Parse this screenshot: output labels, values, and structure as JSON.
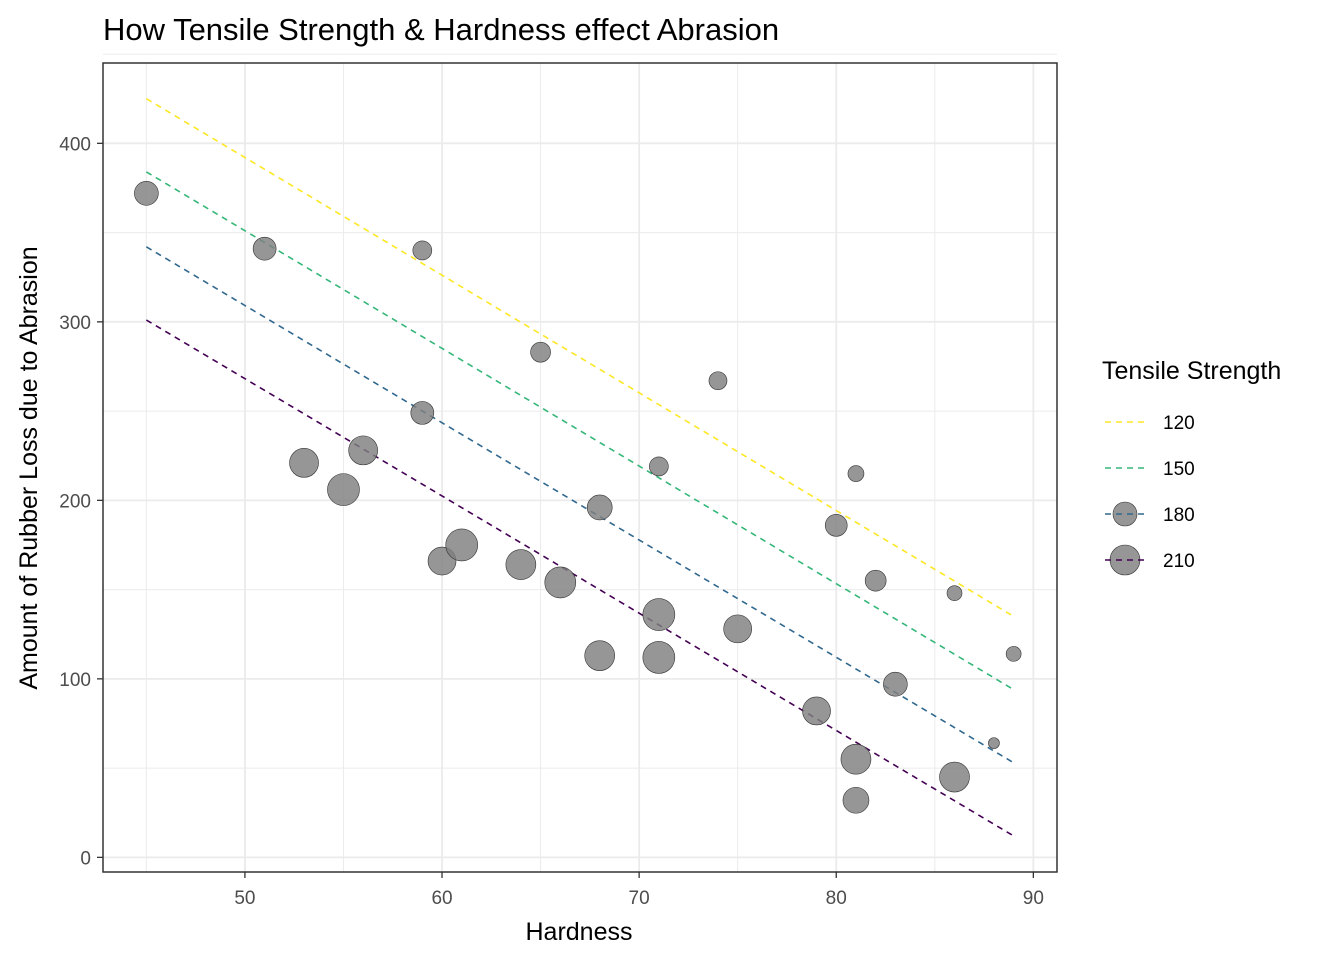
{
  "chart_data": {
    "type": "scatter",
    "title": "How Tensile Strength & Hardness effect Abrasion",
    "xlabel": "Hardness",
    "ylabel": "Amount of Rubber Loss due to Abrasion",
    "xlim": [
      42.8,
      91.2
    ],
    "ylim": [
      -8.2,
      445
    ],
    "x_ticks": [
      50,
      60,
      70,
      80,
      90
    ],
    "y_ticks": [
      0,
      100,
      200,
      300,
      400
    ],
    "grid": true,
    "legend": {
      "title": "Tensile Strength",
      "placement": "right",
      "entries": [
        {
          "label": "120",
          "value": 120,
          "color": "#FDE725",
          "marker": false
        },
        {
          "label": "150",
          "value": 150,
          "color": "#35B779",
          "marker": false
        },
        {
          "label": "180",
          "value": 180,
          "color": "#31688E",
          "marker": true
        },
        {
          "label": "210",
          "value": 210,
          "color": "#440154",
          "marker": true
        }
      ]
    },
    "point_color": "#7f7f7f",
    "size_variable": "Tensile Strength",
    "points": [
      {
        "x": 45,
        "y": 372,
        "size": 180
      },
      {
        "x": 51,
        "y": 341,
        "size": 175
      },
      {
        "x": 59,
        "y": 340,
        "size": 155
      },
      {
        "x": 59,
        "y": 249,
        "size": 175
      },
      {
        "x": 53,
        "y": 221,
        "size": 205
      },
      {
        "x": 56,
        "y": 228,
        "size": 205
      },
      {
        "x": 55,
        "y": 206,
        "size": 220
      },
      {
        "x": 60,
        "y": 166,
        "size": 200
      },
      {
        "x": 61,
        "y": 175,
        "size": 220
      },
      {
        "x": 64,
        "y": 164,
        "size": 210
      },
      {
        "x": 66,
        "y": 154,
        "size": 215
      },
      {
        "x": 65,
        "y": 283,
        "size": 160
      },
      {
        "x": 68,
        "y": 196,
        "size": 185
      },
      {
        "x": 68,
        "y": 113,
        "size": 210
      },
      {
        "x": 71,
        "y": 219,
        "size": 155
      },
      {
        "x": 71,
        "y": 136,
        "size": 220
      },
      {
        "x": 71,
        "y": 112,
        "size": 220
      },
      {
        "x": 74,
        "y": 267,
        "size": 150
      },
      {
        "x": 75,
        "y": 128,
        "size": 200
      },
      {
        "x": 79,
        "y": 82,
        "size": 200
      },
      {
        "x": 80,
        "y": 186,
        "size": 170
      },
      {
        "x": 81,
        "y": 215,
        "size": 140
      },
      {
        "x": 81,
        "y": 55,
        "size": 210
      },
      {
        "x": 81,
        "y": 32,
        "size": 190
      },
      {
        "x": 82,
        "y": 155,
        "size": 165
      },
      {
        "x": 83,
        "y": 97,
        "size": 180
      },
      {
        "x": 86,
        "y": 148,
        "size": 135
      },
      {
        "x": 86,
        "y": 45,
        "size": 210
      },
      {
        "x": 88,
        "y": 64,
        "size": 115
      },
      {
        "x": 89,
        "y": 114,
        "size": 135
      }
    ],
    "series": [
      {
        "name": "120",
        "color": "#FDE725",
        "x": [
          45,
          89
        ],
        "y": [
          425,
          135
        ]
      },
      {
        "name": "150",
        "color": "#35B779",
        "x": [
          45,
          89
        ],
        "y": [
          384,
          94
        ]
      },
      {
        "name": "180",
        "color": "#31688E",
        "x": [
          45,
          89
        ],
        "y": [
          342,
          53
        ]
      },
      {
        "name": "210",
        "color": "#440154",
        "x": [
          45,
          89
        ],
        "y": [
          301,
          12
        ]
      }
    ]
  }
}
